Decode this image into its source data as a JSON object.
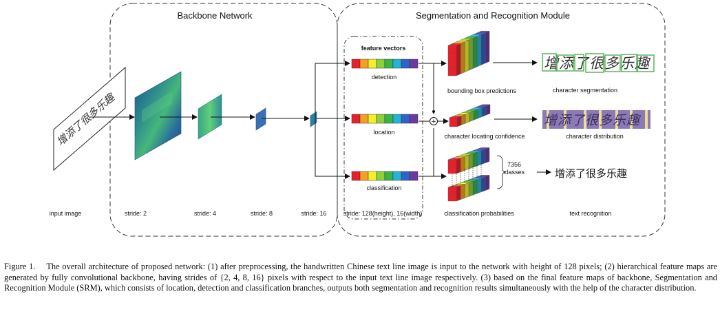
{
  "titles": {
    "backbone": "Backbone Network",
    "srm": "Segmentation and Recognition Module",
    "feature_vectors": "feature vectors"
  },
  "branches": {
    "detection": "detection",
    "location": "location",
    "classification": "classification"
  },
  "outputs": {
    "bbox": "bounding box predictions",
    "confidence": "character locating confidence",
    "probabilities": "classification probabilities",
    "segmentation": "character segmentation",
    "distribution": "character distribution",
    "recognition": "text recognition",
    "classes_count": "7356",
    "classes_word": "classes",
    "recognized_text": "增添了很多乐趣",
    "handwriting": "增添了很多乐趣"
  },
  "stages": {
    "input": "input image",
    "s2": "stride: 2",
    "s4": "stride: 4",
    "s8": "stride: 8",
    "s16": "stride: 16",
    "feature_size": "stride: 128(height), 16(width)"
  },
  "caption": {
    "text": "Figure 1.  The overall architecture of proposed network: (1) after preprocessing, the handwritten Chinese text line image is input to the network with height of 128 pixels; (2) hierarchical feature maps are generated by fully convolutional backbone, having strides of {2, 4, 8, 16} pixels with respect to the input text line image respectively. (3) based on the final feature maps of backbone, Segmentation and Recognition Module (SRM), which consists of location, detection and classification branches, outputs both segmentation and recognition results simultaneously with the help of the character distribution."
  },
  "palette": {
    "spectrum": [
      "#e8202a",
      "#f5a023",
      "#f6ee2b",
      "#8fcf3c",
      "#35b54a",
      "#27b3d6",
      "#2f63c9",
      "#6a3a9e"
    ],
    "feature_map": "#2a6f9c",
    "feature_map_light": "#3fbf8a",
    "char_box": "#4caf50",
    "dist_bg": "#8c7ab8",
    "dist_band": "#f2e58a"
  }
}
